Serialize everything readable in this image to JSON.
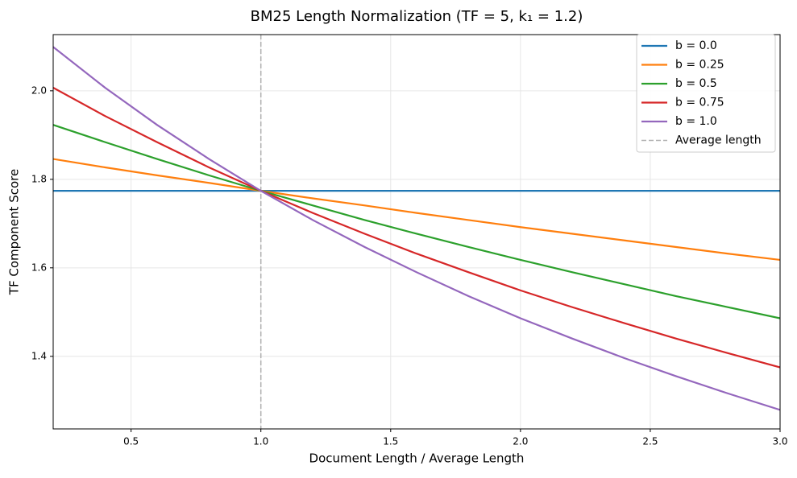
{
  "chart_data": {
    "type": "line",
    "title": "BM25 Length Normalization (TF = 5, k₁ = 1.2)",
    "x_label": "Document Length / Average Length",
    "y_label": "TF Component Score",
    "x": [
      0.2,
      0.4,
      0.6,
      0.8,
      1.0,
      1.2,
      1.4,
      1.6,
      1.8,
      2.0,
      2.2,
      2.4,
      2.6,
      2.8,
      3.0
    ],
    "series": [
      {
        "name": "b = 0.0",
        "color": "#1f77b4",
        "values": [
          1.774,
          1.774,
          1.774,
          1.774,
          1.774,
          1.774,
          1.774,
          1.774,
          1.774,
          1.774,
          1.774,
          1.774,
          1.774,
          1.774,
          1.774
        ]
      },
      {
        "name": "b = 0.25",
        "color": "#ff7f0e",
        "values": [
          1.846,
          1.827,
          1.809,
          1.792,
          1.774,
          1.757,
          1.741,
          1.724,
          1.708,
          1.692,
          1.677,
          1.662,
          1.647,
          1.632,
          1.618
        ]
      },
      {
        "name": "b = 0.5",
        "color": "#2ca02c",
        "values": [
          1.923,
          1.884,
          1.846,
          1.809,
          1.774,
          1.741,
          1.708,
          1.677,
          1.647,
          1.618,
          1.59,
          1.563,
          1.536,
          1.511,
          1.486
        ]
      },
      {
        "name": "b = 0.75",
        "color": "#d62728",
        "values": [
          2.007,
          1.943,
          1.884,
          1.827,
          1.774,
          1.724,
          1.677,
          1.632,
          1.59,
          1.549,
          1.511,
          1.475,
          1.44,
          1.407,
          1.375
        ]
      },
      {
        "name": "b = 1.0",
        "color": "#9467bd",
        "values": [
          2.099,
          2.007,
          1.923,
          1.846,
          1.774,
          1.708,
          1.647,
          1.59,
          1.536,
          1.486,
          1.44,
          1.396,
          1.355,
          1.316,
          1.279
        ]
      }
    ],
    "vline": {
      "x": 1.0,
      "name": "Average length",
      "color": "#b0b0b0"
    },
    "xlim": [
      0.2,
      3.0
    ],
    "ylim": [
      1.236,
      2.127
    ],
    "xticks": [
      0.5,
      {
        "value": 1,
        "label": "1.0"
      },
      1.5,
      {
        "value": 2,
        "label": "2.0"
      },
      2.5,
      {
        "value": 3,
        "label": "3.0"
      }
    ],
    "yticks": [
      1.4,
      1.6,
      1.8,
      {
        "value": 2,
        "label": "2.0"
      }
    ],
    "grid": true,
    "legend": "upper-right"
  }
}
